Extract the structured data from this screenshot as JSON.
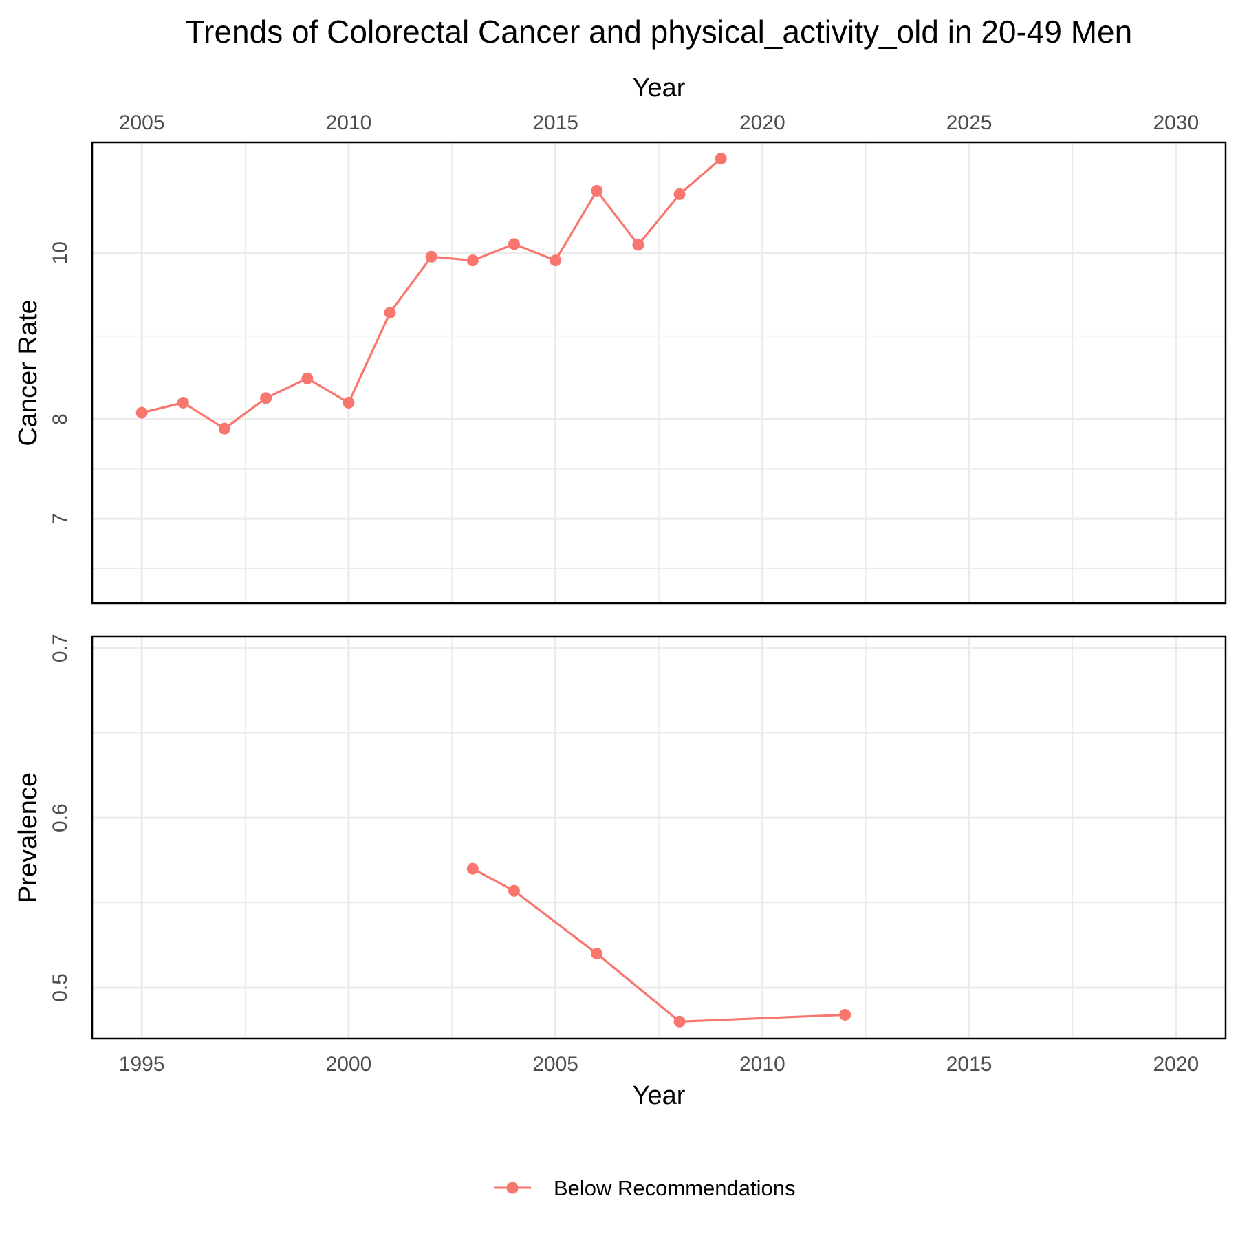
{
  "title": "Trends of Colorectal Cancer and physical_activity_old in 20-49 Men",
  "legend": {
    "label": "Below Recommendations",
    "color": "#F8766D",
    "position": "bottom"
  },
  "chart_data": [
    {
      "type": "line",
      "panel": "top",
      "xlabel": "Year",
      "xaxis_position": "top",
      "ylabel": "Cancer Rate",
      "ylog": true,
      "xlim": [
        2003.8,
        2031.2
      ],
      "ylim": [
        6.25,
        11.6
      ],
      "x_ticks": [
        2005,
        2010,
        2015,
        2020,
        2025,
        2030
      ],
      "y_ticks": [
        7,
        8,
        10
      ],
      "grid": true,
      "series": [
        {
          "name": "Below Recommendations",
          "color": "#F8766D",
          "x": [
            2005,
            2006,
            2007,
            2008,
            2009,
            2010,
            2011,
            2012,
            2013,
            2014,
            2015,
            2016,
            2017,
            2018,
            2019
          ],
          "y": [
            8.07,
            8.18,
            7.9,
            8.23,
            8.45,
            8.18,
            9.23,
            9.95,
            9.9,
            10.12,
            9.9,
            10.87,
            10.11,
            10.82,
            11.35
          ]
        }
      ]
    },
    {
      "type": "line",
      "panel": "bottom",
      "xlabel": "Year",
      "xaxis_position": "bottom",
      "ylabel": "Prevalence",
      "xlim": [
        1993.8,
        2021.2
      ],
      "ylim": [
        0.47,
        0.707
      ],
      "x_ticks": [
        1995,
        2000,
        2005,
        2010,
        2015,
        2020
      ],
      "y_ticks": [
        0.5,
        0.6,
        0.7
      ],
      "grid": true,
      "series": [
        {
          "name": "Below Recommendations",
          "color": "#F8766D",
          "x": [
            2003,
            2004,
            2006,
            2008,
            2012
          ],
          "y": [
            0.57,
            0.557,
            0.52,
            0.48,
            0.484
          ]
        }
      ]
    }
  ]
}
